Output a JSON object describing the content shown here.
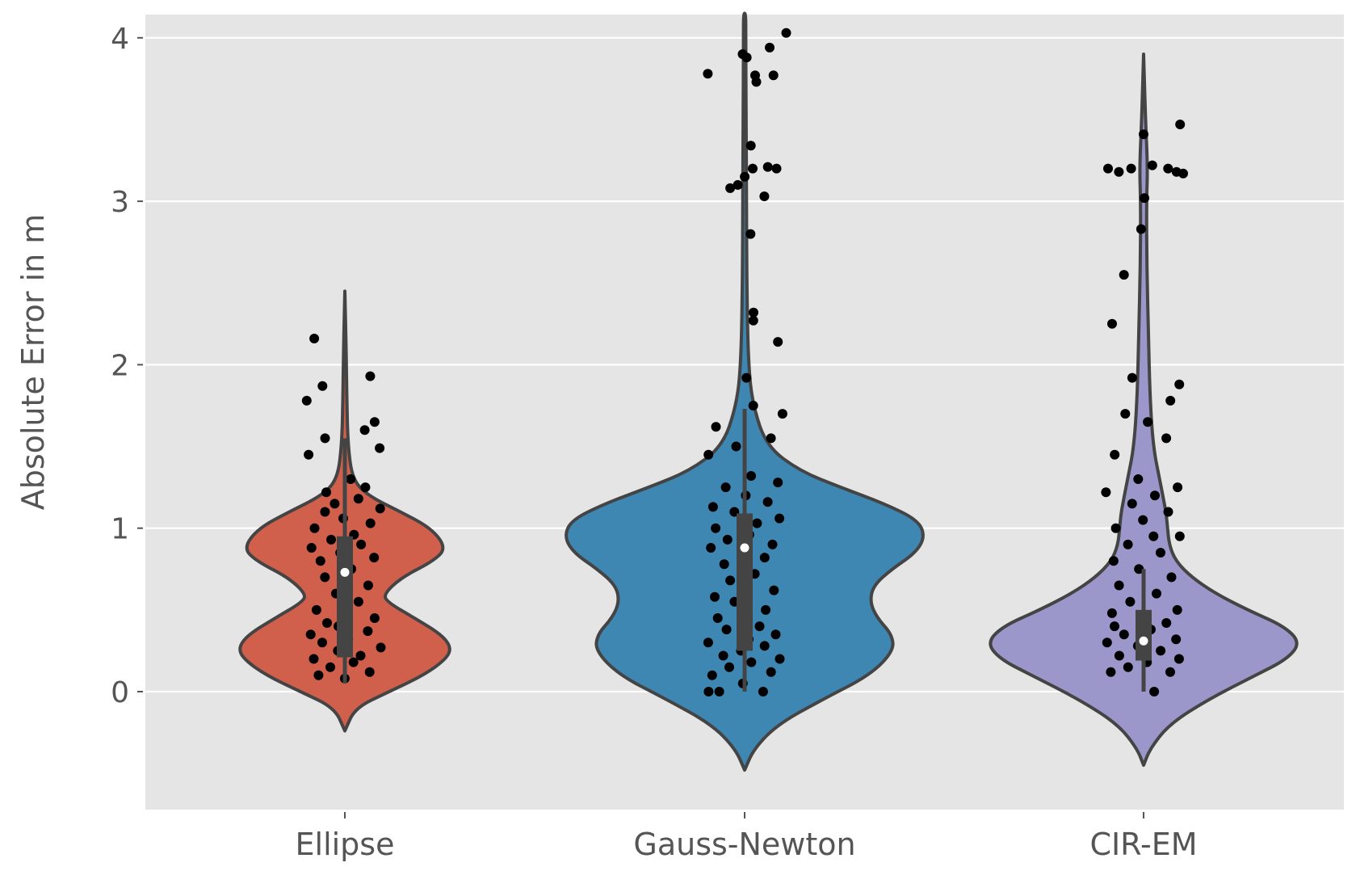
{
  "chart_data": {
    "type": "violin",
    "style": "ggplot",
    "ylabel": "Absolute Error in m",
    "xlabel": "",
    "ylim": [
      -0.72,
      4.15
    ],
    "yticks": [
      0,
      1,
      2,
      3,
      4
    ],
    "grid": true,
    "categories": [
      "Ellipse",
      "Gauss-Newton",
      "CIR-EM"
    ],
    "series": [
      {
        "name": "Ellipse",
        "color": "#d0604c",
        "density": [
          [
            -0.24,
            0.0
          ],
          [
            -0.1,
            0.08
          ],
          [
            0.0,
            0.35
          ],
          [
            0.1,
            0.62
          ],
          [
            0.2,
            0.8
          ],
          [
            0.27,
            0.84
          ],
          [
            0.35,
            0.76
          ],
          [
            0.45,
            0.55
          ],
          [
            0.55,
            0.33
          ],
          [
            0.6,
            0.31
          ],
          [
            0.7,
            0.45
          ],
          [
            0.8,
            0.7
          ],
          [
            0.88,
            0.8
          ],
          [
            1.0,
            0.68
          ],
          [
            1.1,
            0.44
          ],
          [
            1.2,
            0.18
          ],
          [
            1.3,
            0.06
          ],
          [
            1.5,
            0.025
          ],
          [
            1.8,
            0.015
          ],
          [
            2.1,
            0.01
          ],
          [
            2.45,
            0.0
          ]
        ],
        "box": {
          "q1": 0.21,
          "median": 0.73,
          "q3": 0.95,
          "whisker_low": 0.05,
          "whisker_high": 1.55
        },
        "points": [
          [
            0.5,
            0.08
          ],
          [
            0.2,
            0.1
          ],
          [
            0.8,
            0.12
          ],
          [
            0.35,
            0.15
          ],
          [
            0.6,
            0.18
          ],
          [
            0.15,
            0.2
          ],
          [
            0.7,
            0.22
          ],
          [
            0.4,
            0.25
          ],
          [
            0.9,
            0.27
          ],
          [
            0.25,
            0.3
          ],
          [
            0.55,
            0.32
          ],
          [
            0.1,
            0.35
          ],
          [
            0.75,
            0.37
          ],
          [
            0.45,
            0.4
          ],
          [
            0.3,
            0.42
          ],
          [
            0.85,
            0.45
          ],
          [
            0.5,
            0.48
          ],
          [
            0.2,
            0.5
          ],
          [
            0.65,
            0.55
          ],
          [
            0.4,
            0.6
          ],
          [
            0.78,
            0.65
          ],
          [
            0.3,
            0.7
          ],
          [
            0.55,
            0.75
          ],
          [
            0.2,
            0.8
          ],
          [
            0.85,
            0.82
          ],
          [
            0.45,
            0.85
          ],
          [
            0.1,
            0.88
          ],
          [
            0.7,
            0.9
          ],
          [
            0.35,
            0.93
          ],
          [
            0.6,
            0.96
          ],
          [
            0.15,
            1.0
          ],
          [
            0.8,
            1.03
          ],
          [
            0.5,
            1.06
          ],
          [
            0.25,
            1.1
          ],
          [
            0.9,
            1.12
          ],
          [
            0.4,
            1.15
          ],
          [
            0.65,
            1.18
          ],
          [
            0.3,
            1.22
          ],
          [
            0.75,
            1.25
          ],
          [
            0.55,
            1.3
          ],
          [
            0.1,
            1.45
          ],
          [
            0.9,
            1.49
          ],
          [
            0.3,
            1.55
          ],
          [
            0.7,
            1.6
          ],
          [
            0.85,
            1.65
          ],
          [
            0.05,
            1.78
          ],
          [
            0.25,
            1.87
          ],
          [
            0.8,
            1.93
          ],
          [
            0.15,
            2.16
          ]
        ]
      },
      {
        "name": "Gauss-Newton",
        "color": "#3f87b3",
        "density": [
          [
            -0.48,
            0.0
          ],
          [
            -0.35,
            0.05
          ],
          [
            -0.2,
            0.18
          ],
          [
            -0.05,
            0.42
          ],
          [
            0.1,
            0.68
          ],
          [
            0.25,
            0.81
          ],
          [
            0.35,
            0.8
          ],
          [
            0.45,
            0.72
          ],
          [
            0.55,
            0.68
          ],
          [
            0.65,
            0.7
          ],
          [
            0.75,
            0.8
          ],
          [
            0.85,
            0.93
          ],
          [
            0.95,
            0.98
          ],
          [
            1.05,
            0.94
          ],
          [
            1.15,
            0.76
          ],
          [
            1.25,
            0.52
          ],
          [
            1.35,
            0.3
          ],
          [
            1.5,
            0.12
          ],
          [
            1.75,
            0.045
          ],
          [
            2.0,
            0.02
          ],
          [
            2.5,
            0.012
          ],
          [
            3.0,
            0.01
          ],
          [
            3.5,
            0.008
          ],
          [
            4.0,
            0.006
          ],
          [
            4.15,
            0.006
          ]
        ],
        "box": {
          "q1": 0.25,
          "median": 0.88,
          "q3": 1.09,
          "whisker_low": 0.0,
          "whisker_high": 1.73
        },
        "points": [
          [
            0.1,
            0.0
          ],
          [
            0.2,
            0.0
          ],
          [
            0.7,
            0.0
          ],
          [
            0.5,
            0.05
          ],
          [
            0.15,
            0.1
          ],
          [
            0.8,
            0.12
          ],
          [
            0.35,
            0.15
          ],
          [
            0.6,
            0.18
          ],
          [
            0.9,
            0.2
          ],
          [
            0.25,
            0.22
          ],
          [
            0.45,
            0.25
          ],
          [
            0.7,
            0.28
          ],
          [
            0.1,
            0.3
          ],
          [
            0.55,
            0.32
          ],
          [
            0.85,
            0.35
          ],
          [
            0.3,
            0.38
          ],
          [
            0.65,
            0.4
          ],
          [
            0.2,
            0.45
          ],
          [
            0.5,
            0.48
          ],
          [
            0.75,
            0.5
          ],
          [
            0.4,
            0.55
          ],
          [
            0.15,
            0.58
          ],
          [
            0.85,
            0.62
          ],
          [
            0.35,
            0.68
          ],
          [
            0.6,
            0.72
          ],
          [
            0.25,
            0.78
          ],
          [
            0.7,
            0.82
          ],
          [
            0.45,
            0.85
          ],
          [
            0.1,
            0.88
          ],
          [
            0.8,
            0.9
          ],
          [
            0.3,
            0.93
          ],
          [
            0.55,
            0.96
          ],
          [
            0.2,
            1.0
          ],
          [
            0.65,
            1.03
          ],
          [
            0.9,
            1.06
          ],
          [
            0.4,
            1.1
          ],
          [
            0.15,
            1.13
          ],
          [
            0.75,
            1.16
          ],
          [
            0.5,
            1.2
          ],
          [
            0.3,
            1.25
          ],
          [
            0.85,
            1.28
          ],
          [
            0.6,
            1.32
          ],
          [
            0.1,
            1.45
          ],
          [
            0.4,
            1.5
          ],
          [
            0.8,
            1.55
          ],
          [
            0.2,
            1.62
          ],
          [
            0.9,
            1.7
          ],
          [
            0.6,
            1.75
          ],
          [
            0.5,
            1.92
          ],
          [
            0.87,
            2.14
          ],
          [
            0.6,
            2.27
          ],
          [
            0.62,
            2.32
          ],
          [
            0.55,
            2.8
          ],
          [
            0.7,
            3.03
          ],
          [
            0.35,
            3.08
          ],
          [
            0.45,
            3.1
          ],
          [
            0.52,
            3.15
          ],
          [
            0.58,
            3.2
          ],
          [
            0.75,
            3.21
          ],
          [
            0.85,
            3.2
          ],
          [
            0.55,
            3.34
          ],
          [
            0.1,
            3.78
          ],
          [
            0.6,
            3.77
          ],
          [
            0.65,
            3.73
          ],
          [
            0.85,
            3.77
          ],
          [
            0.5,
            3.9
          ],
          [
            0.55,
            3.88
          ],
          [
            0.78,
            3.94
          ],
          [
            0.95,
            4.03
          ]
        ]
      },
      {
        "name": "CIR-EM",
        "color": "#9b97cb",
        "density": [
          [
            -0.45,
            0.0
          ],
          [
            -0.35,
            0.04
          ],
          [
            -0.2,
            0.16
          ],
          [
            -0.05,
            0.4
          ],
          [
            0.1,
            0.7
          ],
          [
            0.2,
            0.9
          ],
          [
            0.3,
            0.98
          ],
          [
            0.4,
            0.88
          ],
          [
            0.5,
            0.65
          ],
          [
            0.6,
            0.45
          ],
          [
            0.7,
            0.3
          ],
          [
            0.8,
            0.2
          ],
          [
            0.9,
            0.16
          ],
          [
            1.0,
            0.15
          ],
          [
            1.1,
            0.14
          ],
          [
            1.2,
            0.12
          ],
          [
            1.3,
            0.1
          ],
          [
            1.5,
            0.06
          ],
          [
            1.8,
            0.04
          ],
          [
            2.2,
            0.03
          ],
          [
            2.6,
            0.02
          ],
          [
            3.0,
            0.018
          ],
          [
            3.2,
            0.025
          ],
          [
            3.5,
            0.012
          ],
          [
            3.7,
            0.006
          ],
          [
            3.9,
            0.0
          ]
        ],
        "box": {
          "q1": 0.19,
          "median": 0.31,
          "q3": 0.5,
          "whisker_low": 0.0,
          "whisker_high": 0.75
        },
        "points": [
          [
            0.6,
            0.0
          ],
          [
            0.15,
            0.12
          ],
          [
            0.8,
            0.12
          ],
          [
            0.35,
            0.15
          ],
          [
            0.55,
            0.18
          ],
          [
            0.9,
            0.2
          ],
          [
            0.25,
            0.22
          ],
          [
            0.7,
            0.25
          ],
          [
            0.45,
            0.28
          ],
          [
            0.1,
            0.3
          ],
          [
            0.85,
            0.32
          ],
          [
            0.3,
            0.35
          ],
          [
            0.6,
            0.38
          ],
          [
            0.2,
            0.4
          ],
          [
            0.75,
            0.42
          ],
          [
            0.5,
            0.45
          ],
          [
            0.15,
            0.48
          ],
          [
            0.9,
            0.5
          ],
          [
            0.35,
            0.55
          ],
          [
            0.65,
            0.6
          ],
          [
            0.25,
            0.65
          ],
          [
            0.8,
            0.7
          ],
          [
            0.45,
            0.75
          ],
          [
            0.15,
            0.8
          ],
          [
            0.7,
            0.85
          ],
          [
            0.3,
            0.9
          ],
          [
            0.6,
            0.95
          ],
          [
            0.9,
            0.95
          ],
          [
            0.2,
            1.0
          ],
          [
            0.5,
            1.05
          ],
          [
            0.8,
            1.1
          ],
          [
            0.35,
            1.15
          ],
          [
            0.65,
            1.2
          ],
          [
            0.1,
            1.22
          ],
          [
            0.9,
            1.25
          ],
          [
            0.45,
            1.3
          ],
          [
            0.2,
            1.45
          ],
          [
            0.75,
            1.55
          ],
          [
            0.55,
            1.65
          ],
          [
            0.3,
            1.7
          ],
          [
            0.8,
            1.78
          ],
          [
            0.35,
            1.92
          ],
          [
            0.9,
            1.88
          ],
          [
            0.15,
            2.25
          ],
          [
            0.3,
            2.55
          ],
          [
            0.45,
            2.83
          ],
          [
            0.5,
            3.02
          ],
          [
            0.1,
            3.2
          ],
          [
            0.2,
            3.18
          ],
          [
            0.35,
            3.2
          ],
          [
            0.6,
            3.22
          ],
          [
            0.75,
            3.2
          ],
          [
            0.85,
            3.18
          ],
          [
            0.95,
            3.17
          ],
          [
            0.5,
            3.41
          ],
          [
            0.9,
            3.47
          ]
        ]
      }
    ]
  }
}
